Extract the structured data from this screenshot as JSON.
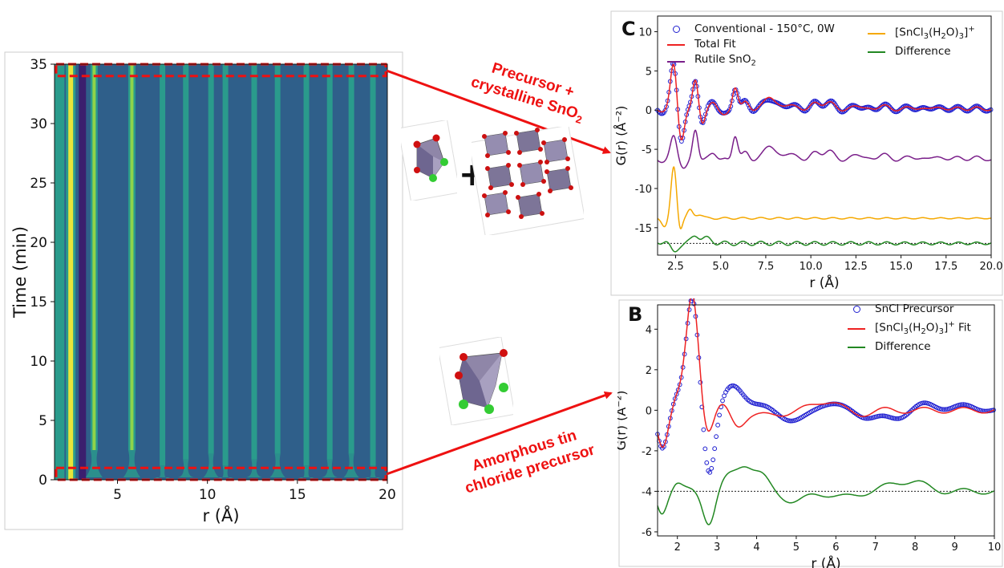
{
  "colors": {
    "arrow": "#ee1111",
    "data_circles": "#1f1fd0",
    "fit": "#ee2222",
    "rutile": "#7a1f8a",
    "complex": "#f5a800",
    "difference": "#228822",
    "hm_background": "#2f5f8a",
    "hm_low": "#3b1f6e",
    "hm_mid": "#2a9b8c",
    "hm_high": "#e8e53a"
  },
  "annotations": {
    "top_arrow_line1": "Precursor +",
    "top_arrow_line2_prefix": "crystalline SnO",
    "top_arrow_line2_sub": "2",
    "bottom_arrow_line1": "Amorphous tin",
    "bottom_arrow_line2": "chloride precursor"
  },
  "structure_icons": {
    "top_left": "octahedron-icon",
    "plus": "+",
    "top_right": "rutile-lattice-icon",
    "bottom": "octahedron-icon"
  },
  "chart_data": [
    {
      "id": "A",
      "type": "heatmap",
      "xlabel": "r (Å)",
      "ylabel": "Time (min)",
      "xlim": [
        1.5,
        20
      ],
      "ylim": [
        0,
        35
      ],
      "xticks": [
        5,
        10,
        15,
        20
      ],
      "yticks": [
        0,
        5,
        10,
        15,
        20,
        25,
        30,
        35
      ],
      "stripes_r": [
        2.4,
        3.7,
        5.8,
        7.5,
        8.8,
        10.2,
        11.0,
        12.6,
        13.9,
        15.5,
        16.8,
        18.0,
        19.2
      ],
      "highlight_boxes_min": [
        [
          0,
          1
        ],
        [
          34,
          35
        ]
      ]
    },
    {
      "id": "C",
      "panel_letter": "C",
      "type": "line",
      "xlabel": "r (Å)",
      "ylabel": "G(r) (Å⁻²)",
      "xlim": [
        1.5,
        20
      ],
      "ylim": [
        -18.5,
        12
      ],
      "xticks": [
        2.5,
        5.0,
        7.5,
        10.0,
        12.5,
        15.0,
        17.5,
        20.0
      ],
      "xtick_labels": [
        "2.5",
        "5.0",
        "7.5",
        "10.0",
        "12.5",
        "15.0",
        "17.5",
        "20.0"
      ],
      "yticks": [
        -15,
        -10,
        -5,
        0,
        5,
        10
      ],
      "legend": {
        "data": "Conventional - 150°C, 0W",
        "fit": "Total Fit",
        "rutile": "Rutile SnO",
        "rutile_sub": "2",
        "complex": "[SnCl",
        "complex_sub1": "3",
        "complex_mid": "(H",
        "complex_sub2": "2",
        "complex_mid2": "O)",
        "complex_sub3": "3",
        "complex_end": "]",
        "complex_sup": "+",
        "difference": "Difference"
      },
      "series": [
        {
          "key": "data",
          "offset": 0,
          "peaks": [
            [
              2.4,
              6.0,
              0.18
            ],
            [
              2.8,
              -4.0,
              0.18
            ],
            [
              3.6,
              4.0,
              0.15
            ],
            [
              4.0,
              -1.8,
              0.15
            ],
            [
              4.6,
              1.3,
              0.2
            ],
            [
              5.2,
              -0.8,
              0.2
            ],
            [
              5.8,
              3.0,
              0.15
            ],
            [
              6.4,
              1.0,
              0.2
            ],
            [
              7.7,
              1.6,
              0.3
            ],
            [
              8.8,
              0.8,
              0.3
            ],
            [
              10.2,
              0.8,
              0.3
            ],
            [
              11.0,
              1.0,
              0.3
            ],
            [
              12.6,
              0.6,
              0.3
            ],
            [
              14.0,
              0.6,
              0.3
            ],
            [
              15.5,
              0.4,
              0.3
            ],
            [
              16.8,
              0.4,
              0.3
            ],
            [
              18.0,
              0.3,
              0.3
            ],
            [
              19.2,
              0.3,
              0.3
            ]
          ],
          "ripple": 0.5
        },
        {
          "key": "fit",
          "offset": 0,
          "peaks": [
            [
              2.4,
              6.0,
              0.18
            ],
            [
              2.8,
              -4.0,
              0.18
            ],
            [
              3.6,
              4.0,
              0.15
            ],
            [
              4.0,
              -1.8,
              0.15
            ],
            [
              4.6,
              1.1,
              0.2
            ],
            [
              5.2,
              -0.8,
              0.2
            ],
            [
              5.8,
              3.0,
              0.15
            ],
            [
              6.4,
              1.0,
              0.2
            ],
            [
              7.7,
              1.8,
              0.3
            ],
            [
              8.8,
              0.8,
              0.3
            ],
            [
              10.2,
              0.8,
              0.3
            ],
            [
              11.0,
              1.0,
              0.3
            ],
            [
              12.6,
              0.6,
              0.3
            ],
            [
              14.0,
              0.6,
              0.3
            ],
            [
              15.5,
              0.4,
              0.3
            ],
            [
              16.8,
              0.4,
              0.3
            ],
            [
              18.0,
              0.3,
              0.3
            ],
            [
              19.2,
              0.3,
              0.3
            ]
          ],
          "ripple": 0.25
        },
        {
          "key": "rutile",
          "offset": -6.4,
          "peaks": [
            [
              2.4,
              3.0,
              0.18
            ],
            [
              3.0,
              -1.0,
              0.2
            ],
            [
              3.6,
              4.0,
              0.15
            ],
            [
              4.6,
              1.0,
              0.2
            ],
            [
              5.8,
              3.2,
              0.15
            ],
            [
              6.4,
              1.0,
              0.2
            ],
            [
              7.7,
              2.0,
              0.3
            ],
            [
              8.8,
              1.0,
              0.3
            ],
            [
              10.2,
              0.9,
              0.3
            ],
            [
              11.0,
              1.2,
              0.3
            ],
            [
              12.6,
              0.8,
              0.3
            ],
            [
              14.0,
              0.8,
              0.3
            ],
            [
              15.5,
              0.5,
              0.3
            ],
            [
              16.8,
              0.5,
              0.3
            ],
            [
              18.0,
              0.4,
              0.3
            ],
            [
              19.2,
              0.4,
              0.3
            ]
          ],
          "ripple": 0.3
        },
        {
          "key": "complex",
          "offset": -13.8,
          "peaks": [
            [
              1.9,
              -1.0,
              0.15
            ],
            [
              2.4,
              6.5,
              0.15
            ],
            [
              2.75,
              -1.5,
              0.12
            ],
            [
              3.3,
              1.0,
              0.15
            ],
            [
              3.8,
              0.5,
              0.2
            ]
          ],
          "ripple": 0.15
        },
        {
          "key": "difference",
          "offset": -17.0,
          "peaks": [
            [
              1.9,
              0.4,
              0.2
            ],
            [
              2.4,
              -1.2,
              0.2
            ],
            [
              3.6,
              1.0,
              0.2
            ],
            [
              4.2,
              0.6,
              0.3
            ]
          ],
          "ripple": 0.35
        }
      ],
      "baseline": -17.0
    },
    {
      "id": "B",
      "panel_letter": "B",
      "type": "line",
      "xlabel": "r (Å)",
      "ylabel": "G(r) (Å⁻²)",
      "xlim": [
        1.5,
        10
      ],
      "ylim": [
        -6.2,
        5.2
      ],
      "xticks": [
        2,
        3,
        4,
        5,
        6,
        7,
        8,
        9,
        10
      ],
      "yticks": [
        -6,
        -4,
        -2,
        0,
        2,
        4
      ],
      "legend": {
        "data": "SnCl Precursor",
        "fit_prefix": "[SnCl",
        "fit_sub1": "3",
        "fit_mid": "(H",
        "fit_sub2": "2",
        "fit_mid2": "O)",
        "fit_sub3": "3",
        "fit_end": "]",
        "fit_sup": "+",
        "fit_suffix": " Fit",
        "difference": "Difference"
      },
      "series": [
        {
          "key": "data",
          "offset": 0,
          "peaks": [
            [
              1.62,
              -1.8,
              0.13
            ],
            [
              1.98,
              0.6,
              0.12
            ],
            [
              2.38,
              5.5,
              0.16
            ],
            [
              2.8,
              -3.2,
              0.15
            ],
            [
              3.4,
              1.0,
              0.25
            ],
            [
              3.8,
              0.3,
              0.35
            ],
            [
              5.0,
              -0.5,
              0.35
            ],
            [
              5.8,
              0.4,
              0.3
            ],
            [
              6.8,
              -0.3,
              0.3
            ],
            [
              7.5,
              -0.4,
              0.3
            ],
            [
              8.2,
              0.3,
              0.3
            ],
            [
              9.2,
              0.2,
              0.3
            ]
          ],
          "ripple": 0.12
        },
        {
          "key": "fit",
          "offset": 0,
          "peaks": [
            [
              1.62,
              -1.7,
              0.13
            ],
            [
              1.98,
              0.6,
              0.12
            ],
            [
              2.38,
              5.6,
              0.16
            ],
            [
              2.75,
              -1.2,
              0.15
            ],
            [
              3.1,
              0.3,
              0.2
            ],
            [
              3.5,
              -0.8,
              0.18
            ],
            [
              4.3,
              -0.3,
              0.3
            ],
            [
              5.8,
              0.5,
              0.3
            ],
            [
              6.5,
              -0.2,
              0.3
            ]
          ],
          "ripple": 0.2
        },
        {
          "key": "difference",
          "offset": -4.0,
          "peaks": [
            [
              1.6,
              -1.0,
              0.12
            ],
            [
              1.98,
              0.4,
              0.12
            ],
            [
              2.8,
              -1.5,
              0.15
            ],
            [
              3.3,
              0.6,
              0.2
            ],
            [
              3.7,
              1.2,
              0.2
            ],
            [
              4.1,
              0.7,
              0.2
            ],
            [
              5.0,
              -0.5,
              0.3
            ],
            [
              6.2,
              -0.3,
              0.3
            ],
            [
              7.5,
              0.3,
              0.3
            ],
            [
              8.0,
              0.4,
              0.3
            ]
          ],
          "ripple": 0.2
        }
      ],
      "baseline": -4.0
    }
  ]
}
